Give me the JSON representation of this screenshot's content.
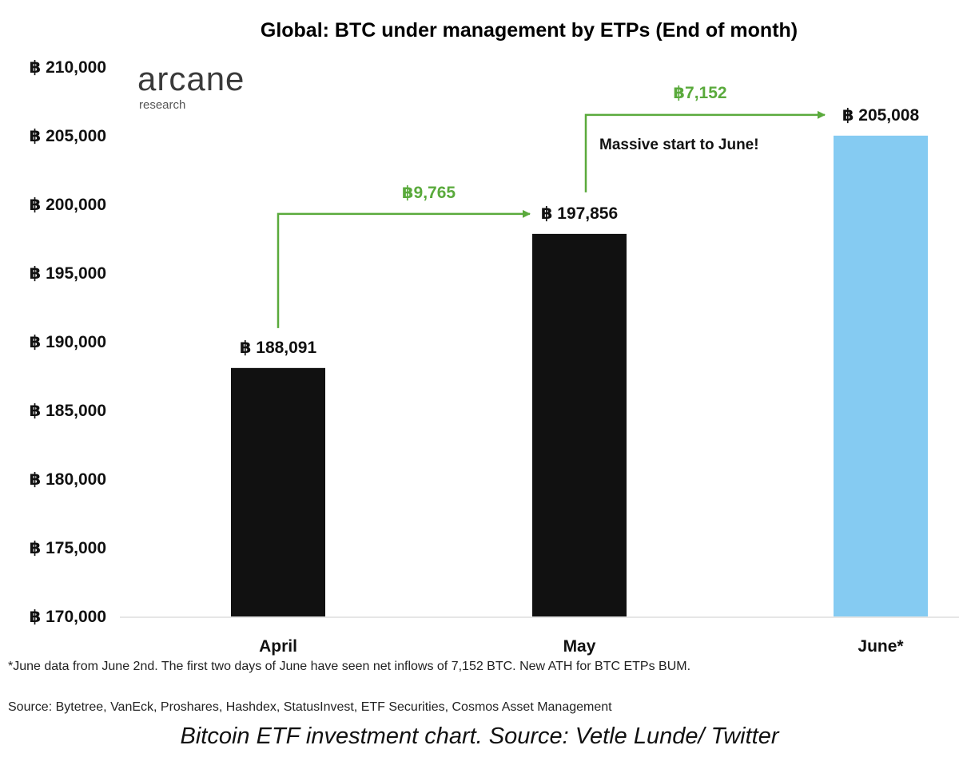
{
  "chart_data": {
    "type": "bar",
    "title": "Global: BTC under management by ETPs (End of month)",
    "currency_symbol": "฿",
    "categories": [
      "April",
      "May",
      "June*"
    ],
    "values": [
      188091,
      197856,
      205008
    ],
    "value_labels": [
      "฿ 188,091",
      "฿ 197,856",
      "฿ 205,008"
    ],
    "bar_colors": [
      "#111111",
      "#111111",
      "#85cbf2"
    ],
    "ylim": [
      170000,
      210000
    ],
    "ytick_values": [
      170000,
      175000,
      180000,
      185000,
      190000,
      195000,
      200000,
      205000,
      210000
    ],
    "ytick_labels": [
      "฿ 170,000",
      "฿ 175,000",
      "฿ 180,000",
      "฿ 185,000",
      "฿ 190,000",
      "฿ 195,000",
      "฿ 200,000",
      "฿ 205,000",
      "฿ 210,000"
    ],
    "grid": false,
    "xlabel": "",
    "ylabel": "",
    "changes": [
      {
        "from": "April",
        "to": "May",
        "label": "฿9,765"
      },
      {
        "from": "May",
        "to": "June*",
        "label": "฿7,152"
      }
    ],
    "annotation": "Massive start to June!",
    "arrow_color": "#5aaa3c"
  },
  "logo": {
    "main": "arcane",
    "sub": "research"
  },
  "footnote": "*June data from June 2nd. The first two days of June have seen net inflows of 7,152 BTC. New ATH for BTC ETPs BUM.",
  "source": "Source: Bytetree, VanEck, Proshares, Hashdex, StatusInvest, ETF Securities, Cosmos Asset Management",
  "caption": "Bitcoin ETF investment chart. Source: Vetle Lunde/ Twitter"
}
